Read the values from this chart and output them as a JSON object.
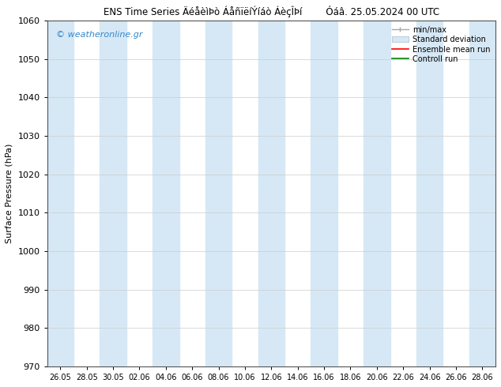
{
  "title_left": "ENS Time Series ÄéåèìÞò ÁåñïëíÝíáò ÁèçÎÞí",
  "title_right": "Óáâ. 25.05.2024 00 UTC",
  "ylabel": "Surface Pressure (hPa)",
  "ylim": [
    970,
    1060
  ],
  "yticks": [
    970,
    980,
    990,
    1000,
    1010,
    1020,
    1030,
    1040,
    1050,
    1060
  ],
  "x_labels": [
    "26.05",
    "28.05",
    "30.05",
    "02.06",
    "04.06",
    "06.06",
    "08.06",
    "10.06",
    "12.06",
    "14.06",
    "16.06",
    "18.06",
    "20.06",
    "22.06",
    "24.06",
    "26.06",
    "28.06"
  ],
  "watermark": "© weatheronline.gr",
  "bg_color": "#ffffff",
  "band_color": "#d6e8f5",
  "grid_color": "#cccccc",
  "min_max_color": "#a8a8a8",
  "ensemble_color": "#ff0000",
  "control_color": "#008000"
}
